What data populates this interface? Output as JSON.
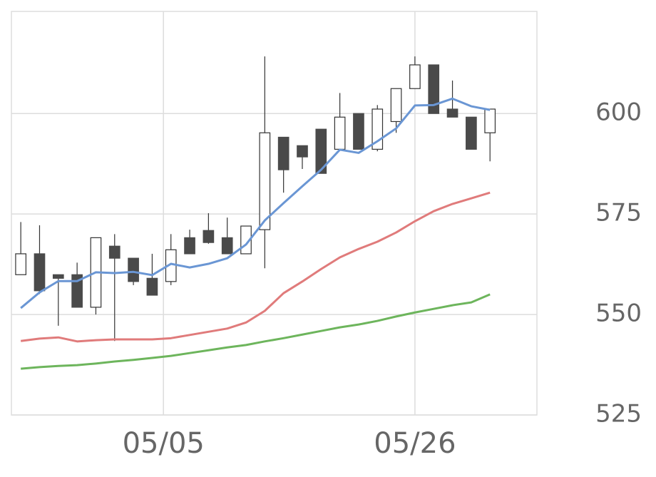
{
  "chart_data": {
    "type": "candlestick",
    "xlim": [
      -0.5,
      27.5
    ],
    "xticks": [
      {
        "value": 7.6,
        "label": "05/05"
      },
      {
        "value": 21,
        "label": "05/26"
      }
    ],
    "ylim": [
      525,
      625.4
    ],
    "yticks": [
      525,
      550,
      575,
      600
    ],
    "grid": true,
    "candle_colors": {
      "up": "#ffffff",
      "down": "#4a4a4a",
      "edge": "#333333"
    },
    "open": [
      559.9,
      565.1,
      559.9,
      559.9,
      551.8,
      567.0,
      564.0,
      559.0,
      558.2,
      569.1,
      570.9,
      569.1,
      565.1,
      571.1,
      594.1,
      592.0,
      596.1,
      591.1,
      600,
      591.1,
      598.0,
      606.2,
      612.1,
      601.1,
      599.1,
      595.2
    ],
    "high": [
      573.0,
      572.2,
      559.9,
      562.9,
      569.1,
      570.0,
      564.0,
      565.1,
      570.0,
      571.1,
      575.2,
      574.1,
      572.0,
      614.2,
      594.1,
      592.0,
      596.1,
      605.1,
      600,
      602.1,
      606.2,
      614.2,
      612.1,
      608.2,
      599.1,
      601.1
    ],
    "low": [
      559.9,
      555.1,
      547.2,
      551.8,
      550.0,
      543.4,
      557.3,
      554.8,
      557.3,
      565.1,
      567.6,
      565.1,
      565.1,
      561.5,
      580.3,
      586.2,
      585.1,
      591.1,
      591.1,
      590.6,
      595.2,
      606.2,
      600,
      599.1,
      591.1,
      588.1
    ],
    "close": [
      565.1,
      555.9,
      559.0,
      551.8,
      569.1,
      564.0,
      558.2,
      554.8,
      566.1,
      565.1,
      567.9,
      565.1,
      572.0,
      595.2,
      586.0,
      589.2,
      585.1,
      599.1,
      591.1,
      601.1,
      606.2,
      612.1,
      600,
      599.1,
      591.1,
      601.1
    ],
    "series": [
      {
        "color": "#6a96d4",
        "values": [
          551.6,
          555.5,
          558.3,
          558.3,
          560.5,
          560.3,
          560.6,
          559.8,
          562.6,
          561.7,
          562.6,
          564.0,
          567.4,
          573.4,
          577.7,
          581.9,
          586.0,
          591.0,
          590.2,
          593.1,
          596.3,
          602.0,
          602.1,
          603.7,
          601.8,
          600.9
        ]
      },
      {
        "color": "#e07b7b",
        "values": [
          543.4,
          544.0,
          544.3,
          543.3,
          543.6,
          543.8,
          543.8,
          543.8,
          544.1,
          544.9,
          545.7,
          546.5,
          548.0,
          550.9,
          555.3,
          558.2,
          561.3,
          564.2,
          566.3,
          568.1,
          570.4,
          573.2,
          575.7,
          577.5,
          578.9,
          580.3
        ]
      },
      {
        "color": "#6db55c",
        "values": [
          536.5,
          536.9,
          537.2,
          537.4,
          537.8,
          538.3,
          538.7,
          539.2,
          539.7,
          540.4,
          541.1,
          541.8,
          542.4,
          543.3,
          544.1,
          545.0,
          545.9,
          546.8,
          547.5,
          548.4,
          549.5,
          550.5,
          551.4,
          552.3,
          553.0,
          555.0
        ]
      }
    ]
  }
}
